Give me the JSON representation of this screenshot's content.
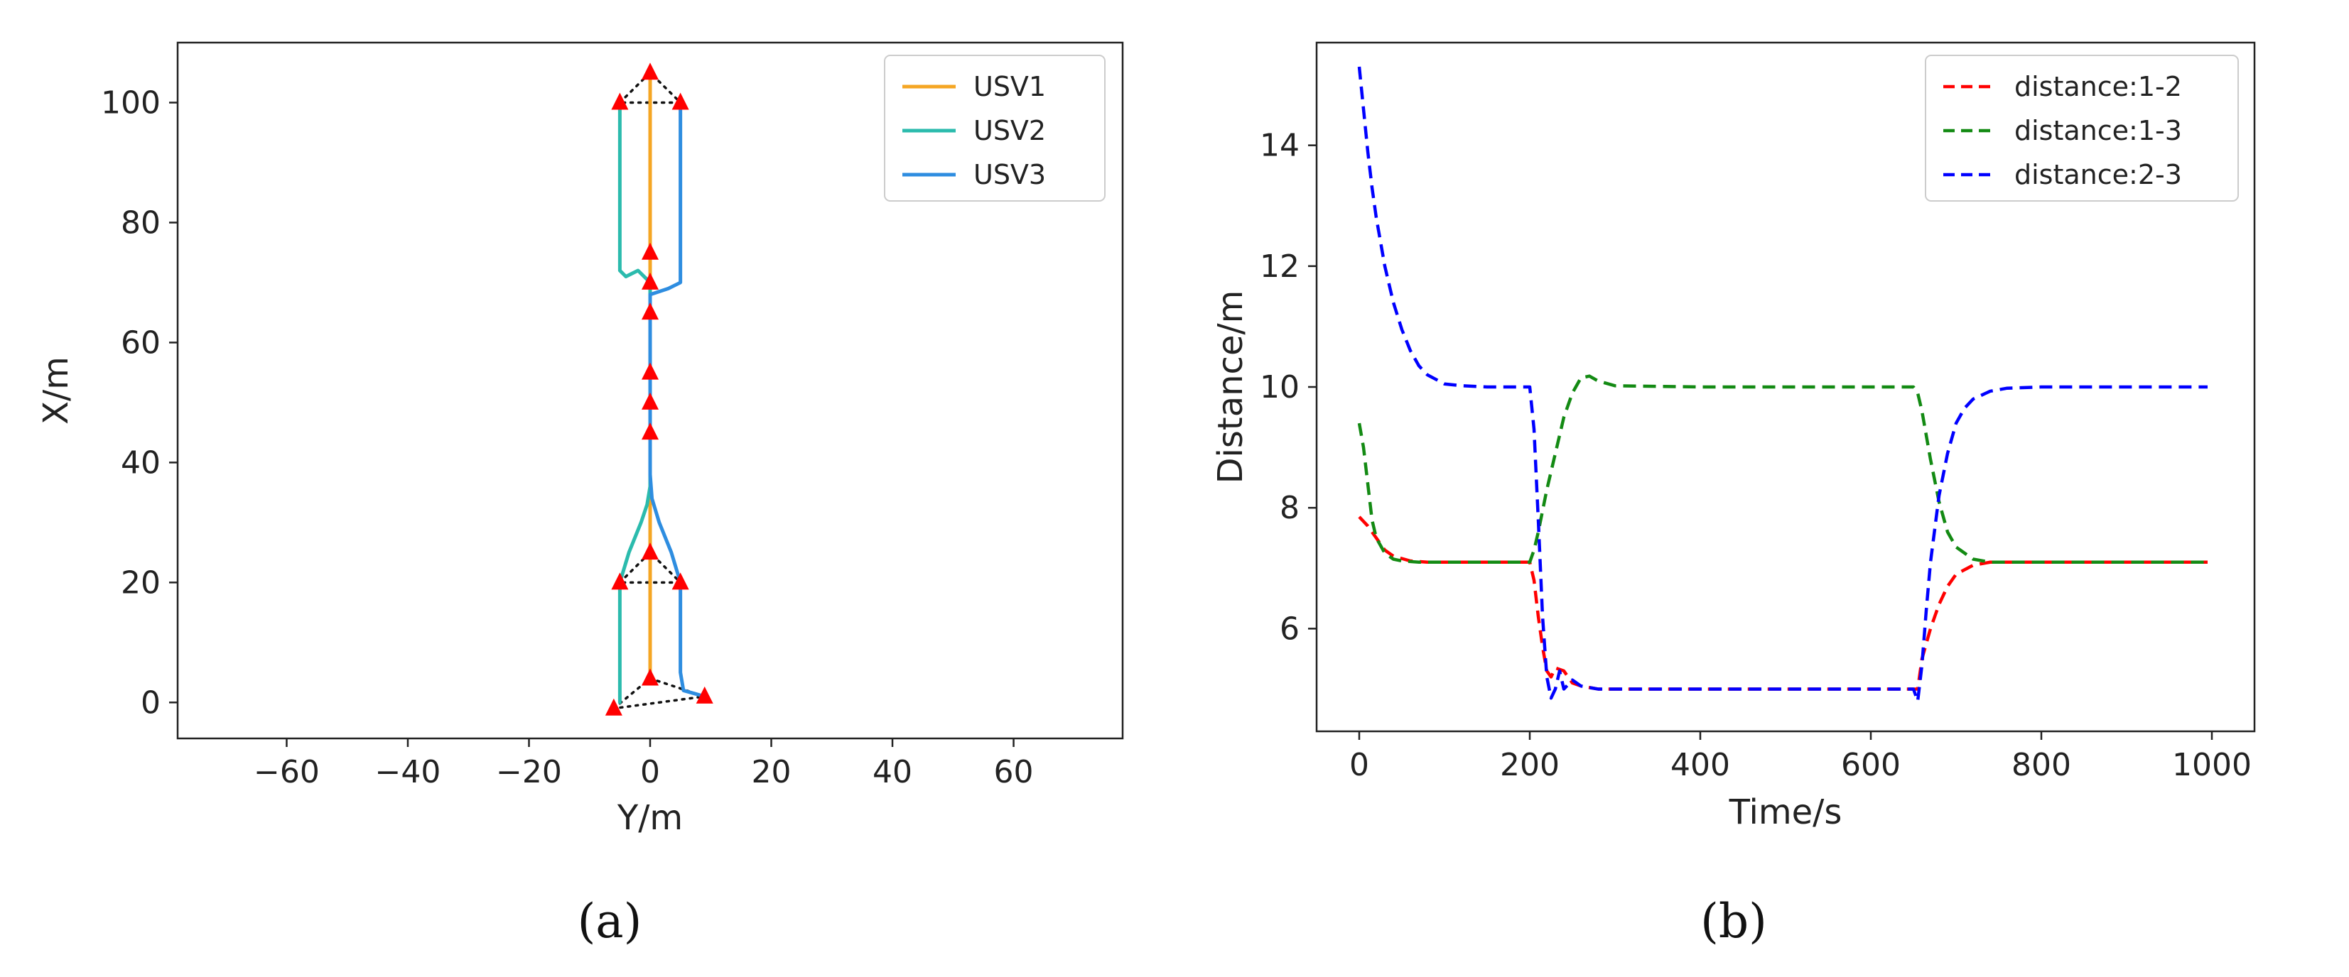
{
  "figure_captions": {
    "a": "(a)",
    "b": "(b)"
  },
  "chart_data": [
    {
      "panel": "a",
      "type": "line",
      "xlabel": "Y/m",
      "ylabel": "X/m",
      "xlim": [
        -78,
        78
      ],
      "ylim": [
        -6,
        110
      ],
      "xticks": [
        -60,
        -40,
        -20,
        0,
        20,
        40,
        60
      ],
      "yticks": [
        0,
        20,
        40,
        60,
        80,
        100
      ],
      "legend_position": "upper right",
      "series": [
        {
          "name": "USV1",
          "color": "#f5a623",
          "points": [
            [
              0,
              3
            ],
            [
              0,
              20
            ],
            [
              0,
              40
            ],
            [
              0,
              60
            ],
            [
              0,
              70
            ],
            [
              0,
              80
            ],
            [
              0,
              100
            ],
            [
              0,
              105
            ]
          ]
        },
        {
          "name": "USV2",
          "color": "#2bbbad",
          "points": [
            [
              -5,
              20
            ],
            [
              -5,
              0
            ],
            [
              -5,
              20
            ],
            [
              -3.5,
              25
            ],
            [
              -1.5,
              30
            ],
            [
              -0.5,
              33
            ],
            [
              0,
              36
            ],
            [
              0,
              44
            ],
            [
              0,
              64
            ],
            [
              0,
              70
            ],
            [
              -2,
              72
            ],
            [
              -4,
              71
            ],
            [
              -5,
              72
            ],
            [
              -5,
              80
            ],
            [
              -5,
              100
            ]
          ]
        },
        {
          "name": "USV3",
          "color": "#2e8de0",
          "points": [
            [
              9,
              1
            ],
            [
              5.5,
              2
            ],
            [
              5,
              5
            ],
            [
              5,
              20
            ],
            [
              3.5,
              25
            ],
            [
              1.5,
              30
            ],
            [
              0.3,
              34
            ],
            [
              0,
              38
            ],
            [
              0,
              64
            ],
            [
              0,
              68
            ],
            [
              3,
              69
            ],
            [
              5,
              70
            ],
            [
              5,
              80
            ],
            [
              5,
              100
            ]
          ]
        }
      ],
      "formation_markers": [
        [
          0,
          105
        ],
        [
          -5,
          100
        ],
        [
          5,
          100
        ],
        [
          0,
          75
        ],
        [
          0,
          70
        ],
        [
          0,
          65
        ],
        [
          0,
          55
        ],
        [
          0,
          50
        ],
        [
          0,
          45
        ],
        [
          0,
          25
        ],
        [
          -5,
          20
        ],
        [
          5,
          20
        ],
        [
          0,
          4
        ],
        [
          -6,
          -1
        ],
        [
          9,
          1
        ]
      ],
      "formation_links": [
        [
          [
            -5,
            100
          ],
          [
            0,
            105
          ],
          [
            5,
            100
          ],
          [
            -5,
            100
          ]
        ],
        [
          [
            -5,
            20
          ],
          [
            0,
            25
          ],
          [
            5,
            20
          ],
          [
            -5,
            20
          ]
        ],
        [
          [
            -6,
            -1
          ],
          [
            0,
            4
          ],
          [
            9,
            1
          ],
          [
            -6,
            -1
          ]
        ],
        [
          [
            0,
            75
          ],
          [
            0,
            70
          ]
        ]
      ],
      "marker_color": "#ff0000"
    },
    {
      "panel": "b",
      "type": "line",
      "xlabel": "Time/s",
      "ylabel": "Distance/m",
      "xlim": [
        -50,
        1050
      ],
      "ylim": [
        4.3,
        15.7
      ],
      "xticks": [
        0,
        200,
        400,
        600,
        800,
        1000
      ],
      "yticks": [
        6,
        8,
        10,
        12,
        14
      ],
      "legend_position": "upper right",
      "series": [
        {
          "name": "distance:1-2",
          "color": "#ff0000",
          "style": "dashed",
          "x": [
            0,
            10,
            20,
            30,
            40,
            60,
            80,
            120,
            160,
            200,
            205,
            210,
            215,
            220,
            225,
            230,
            240,
            250,
            260,
            280,
            300,
            350,
            400,
            500,
            600,
            650,
            655,
            660,
            670,
            680,
            690,
            700,
            720,
            740,
            760,
            800,
            900,
            995
          ],
          "y": [
            7.85,
            7.7,
            7.5,
            7.3,
            7.2,
            7.12,
            7.1,
            7.1,
            7.1,
            7.1,
            6.8,
            6.2,
            5.7,
            5.3,
            5.2,
            5.35,
            5.3,
            5.1,
            5.05,
            5.0,
            5.0,
            5.0,
            5.0,
            5.0,
            5.0,
            5.0,
            5.0,
            5.5,
            6.0,
            6.4,
            6.7,
            6.9,
            7.05,
            7.1,
            7.1,
            7.1,
            7.1,
            7.1
          ]
        },
        {
          "name": "distance:1-3",
          "color": "#138a13",
          "style": "dashed",
          "x": [
            0,
            5,
            10,
            15,
            20,
            30,
            40,
            50,
            70,
            100,
            150,
            200,
            205,
            210,
            220,
            230,
            240,
            250,
            260,
            270,
            280,
            300,
            400,
            500,
            600,
            650,
            655,
            660,
            670,
            680,
            690,
            700,
            720,
            740,
            760,
            800,
            900,
            995
          ],
          "y": [
            9.4,
            9.0,
            8.4,
            7.8,
            7.5,
            7.25,
            7.15,
            7.12,
            7.1,
            7.1,
            7.1,
            7.1,
            7.3,
            7.6,
            8.3,
            8.9,
            9.5,
            9.9,
            10.15,
            10.18,
            10.1,
            10.02,
            10.0,
            10.0,
            10.0,
            10.0,
            9.9,
            9.6,
            8.8,
            8.1,
            7.6,
            7.35,
            7.15,
            7.1,
            7.1,
            7.1,
            7.1,
            7.1
          ]
        },
        {
          "name": "distance:2-3",
          "color": "#0000ff",
          "style": "dashed",
          "x": [
            0,
            5,
            10,
            15,
            20,
            25,
            30,
            40,
            50,
            60,
            70,
            80,
            100,
            120,
            150,
            200,
            205,
            210,
            215,
            220,
            225,
            230,
            235,
            240,
            250,
            260,
            280,
            300,
            400,
            500,
            600,
            650,
            655,
            660,
            665,
            670,
            680,
            690,
            700,
            710,
            720,
            740,
            760,
            800,
            900,
            995
          ],
          "y": [
            15.3,
            14.6,
            13.9,
            13.3,
            12.8,
            12.4,
            12.0,
            11.4,
            10.95,
            10.6,
            10.35,
            10.2,
            10.05,
            10.02,
            10.0,
            10.0,
            9.3,
            7.8,
            6.2,
            5.2,
            4.85,
            5.0,
            5.3,
            5.0,
            5.15,
            5.05,
            5.0,
            5.0,
            5.0,
            5.0,
            5.0,
            5.0,
            4.8,
            5.4,
            6.3,
            7.1,
            8.2,
            8.9,
            9.4,
            9.65,
            9.8,
            9.93,
            9.98,
            10.0,
            10.0,
            10.0
          ]
        }
      ]
    }
  ]
}
